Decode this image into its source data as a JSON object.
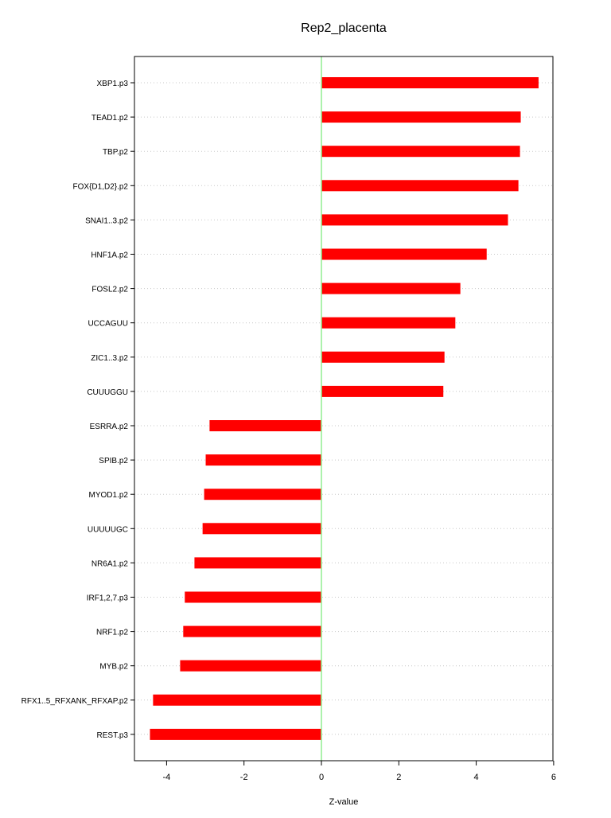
{
  "chart_data": {
    "type": "bar",
    "orientation": "horizontal",
    "title": "Rep2_placenta",
    "xlabel": "Z-value",
    "ylabel": "",
    "xlim": [
      -4.8,
      6
    ],
    "xticks": [
      -4,
      -2,
      0,
      2,
      4,
      6
    ],
    "grid": "horizontal dotted",
    "bar_color": "#ff0000",
    "zero_line_color": "#90ee90",
    "categories": [
      "XBP1.p3",
      "TEAD1.p2",
      "TBP.p2",
      "FOX{D1,D2}.p2",
      "SNAI1..3.p2",
      "HNF1A.p2",
      "FOSL2.p2",
      "UCCAGUU",
      "ZIC1..3.p2",
      "CUUUGGU",
      "ESRRA.p2",
      "SPIB.p2",
      "MYOD1.p2",
      "UUUUUGC",
      "NR6A1.p2",
      "IRF1,2,7.p3",
      "NRF1.p2",
      "MYB.p2",
      "RFX1..5_RFXANK_RFXAP.p2",
      "REST.p3"
    ],
    "values": [
      5.61,
      5.15,
      5.13,
      5.09,
      4.82,
      4.27,
      3.59,
      3.46,
      3.18,
      3.15,
      -2.89,
      -2.99,
      -3.03,
      -3.07,
      -3.28,
      -3.53,
      -3.57,
      -3.65,
      -4.35,
      -4.43
    ]
  }
}
